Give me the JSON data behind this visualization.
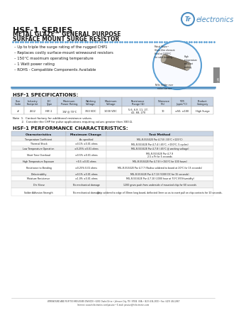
{
  "title_series": "HSF-1 SERIES",
  "logo_text": "electronics",
  "subtitle1": "METAL GLAZE™ GENERAL PURPOSE",
  "subtitle2": "SURFACE MOUNT SURGE RESISTOR",
  "bullets": [
    "Up to triple the surge rating of the rugged CHP1",
    "Replaces costly surface-mount wirewound resistors",
    "150°C maximum operating temperature",
    "1 Watt power rating",
    "ROHS - Compatible Components Available"
  ],
  "spec_title": "HSF-1 SPECIFICATIONS:",
  "spec_headers": [
    "Size\nCode",
    "Industry\nFootprint",
    "IEC\nType",
    "Maximum\nPower Rating",
    "Working\nVoltage",
    "Maximum\nVoltage",
    "Resistance\nRange (Ω)",
    "Tolerance\n(%)",
    "TCR\n(ppm/°C)",
    "Product\nCategory"
  ],
  "spec_row": [
    "#",
    "2512",
    "HSF-1",
    "1W @ 70°C",
    "350 VDC",
    "1000 VDC",
    "5.6, 6.8, 11, 27,\n42, 68, 270",
    "10",
    "±50, ±100",
    "High Surge"
  ],
  "notes": [
    "Note  1.  Contact factory for additional resistance values.",
    "          2.  Consider the CHP for pulse applications requiring values greater than 300 Ω."
  ],
  "perf_title": "HSF-1 PERFORMANCE CHARACTERISTICS:",
  "perf_headers": [
    "Characteristics",
    "Maximum Change",
    "Test Method"
  ],
  "perf_rows": [
    [
      "Temperature Coefficient",
      "As specified",
      "MIL-R-55342E Par 4.7.8 (-55°C +125°C)"
    ],
    [
      "Thermal Shock",
      "±0.1% ±0.01 ohms",
      "MIL-R-55342E Par 4.7.4 (-65°C, +150°C, 5 cycles)"
    ],
    [
      "Low Temperature Operation",
      "±0.25% ±0.01 ohms",
      "MIL-R-55342E Par 4.7.8 (-65°C @ working voltage)"
    ],
    [
      "Short Time Overload",
      "±0.5% ±0.01 ohms",
      "MIL-R-55342E Par 4.7.9\n2.5 x Pr for 5 seconds"
    ],
    [
      "High Temperature Exposure",
      "+0.5 ±0.01 ohms",
      "MIL-R-55342E Par 4.7.8 (+150°C for 100 hours)"
    ],
    [
      "Resistance to Bending",
      "±0.25% 0.01 ohms",
      "MIL-R-55342E Par 4.7.7 (Radius soldered to board at 20°C for 15 seconds)"
    ],
    [
      "Dielectrability",
      "±0.1% ±0.01 ohms",
      "MIL-R-55342E Par 4.7.13 (500V DC for 15 seconds)"
    ],
    [
      "Moisture Resistance",
      "±1.0% ±0.01 ohms",
      "MIL-R-55342E Par 4.7.10 (2000 hour at 70°C 85%humidity)"
    ],
    [
      "Die Shear",
      "No mechanical damage",
      "1200 gram push from underside of mounted chip for 60 seconds"
    ],
    [
      "Solder Adhesion Strength",
      "No mechanical damage",
      "Chip soldered to edge of 30mm long board, deflected 3mm so as to exert pull on chip contacts for 10 seconds."
    ]
  ],
  "footer_lines": [
    "WIREWOUND AND FILM TECHNOLOGIES DIVISION • 6281 Chalet Drive • Johnson City, TN  37604  USA • (423) 434-2800 • Fax: (423) 434-2867",
    "Internet: www.ttelectronics.com/passive • E-mail: passive@ttelectronics.com"
  ],
  "bg_color": "#ffffff",
  "header_blue": "#4a8bbf",
  "table_header_bg": "#c8d4e4",
  "text_dark": "#1a1a1a",
  "dotted_line_color": "#5a9fd4",
  "blue_circle_color": "#5a9fd4",
  "tab_color": "#888888"
}
